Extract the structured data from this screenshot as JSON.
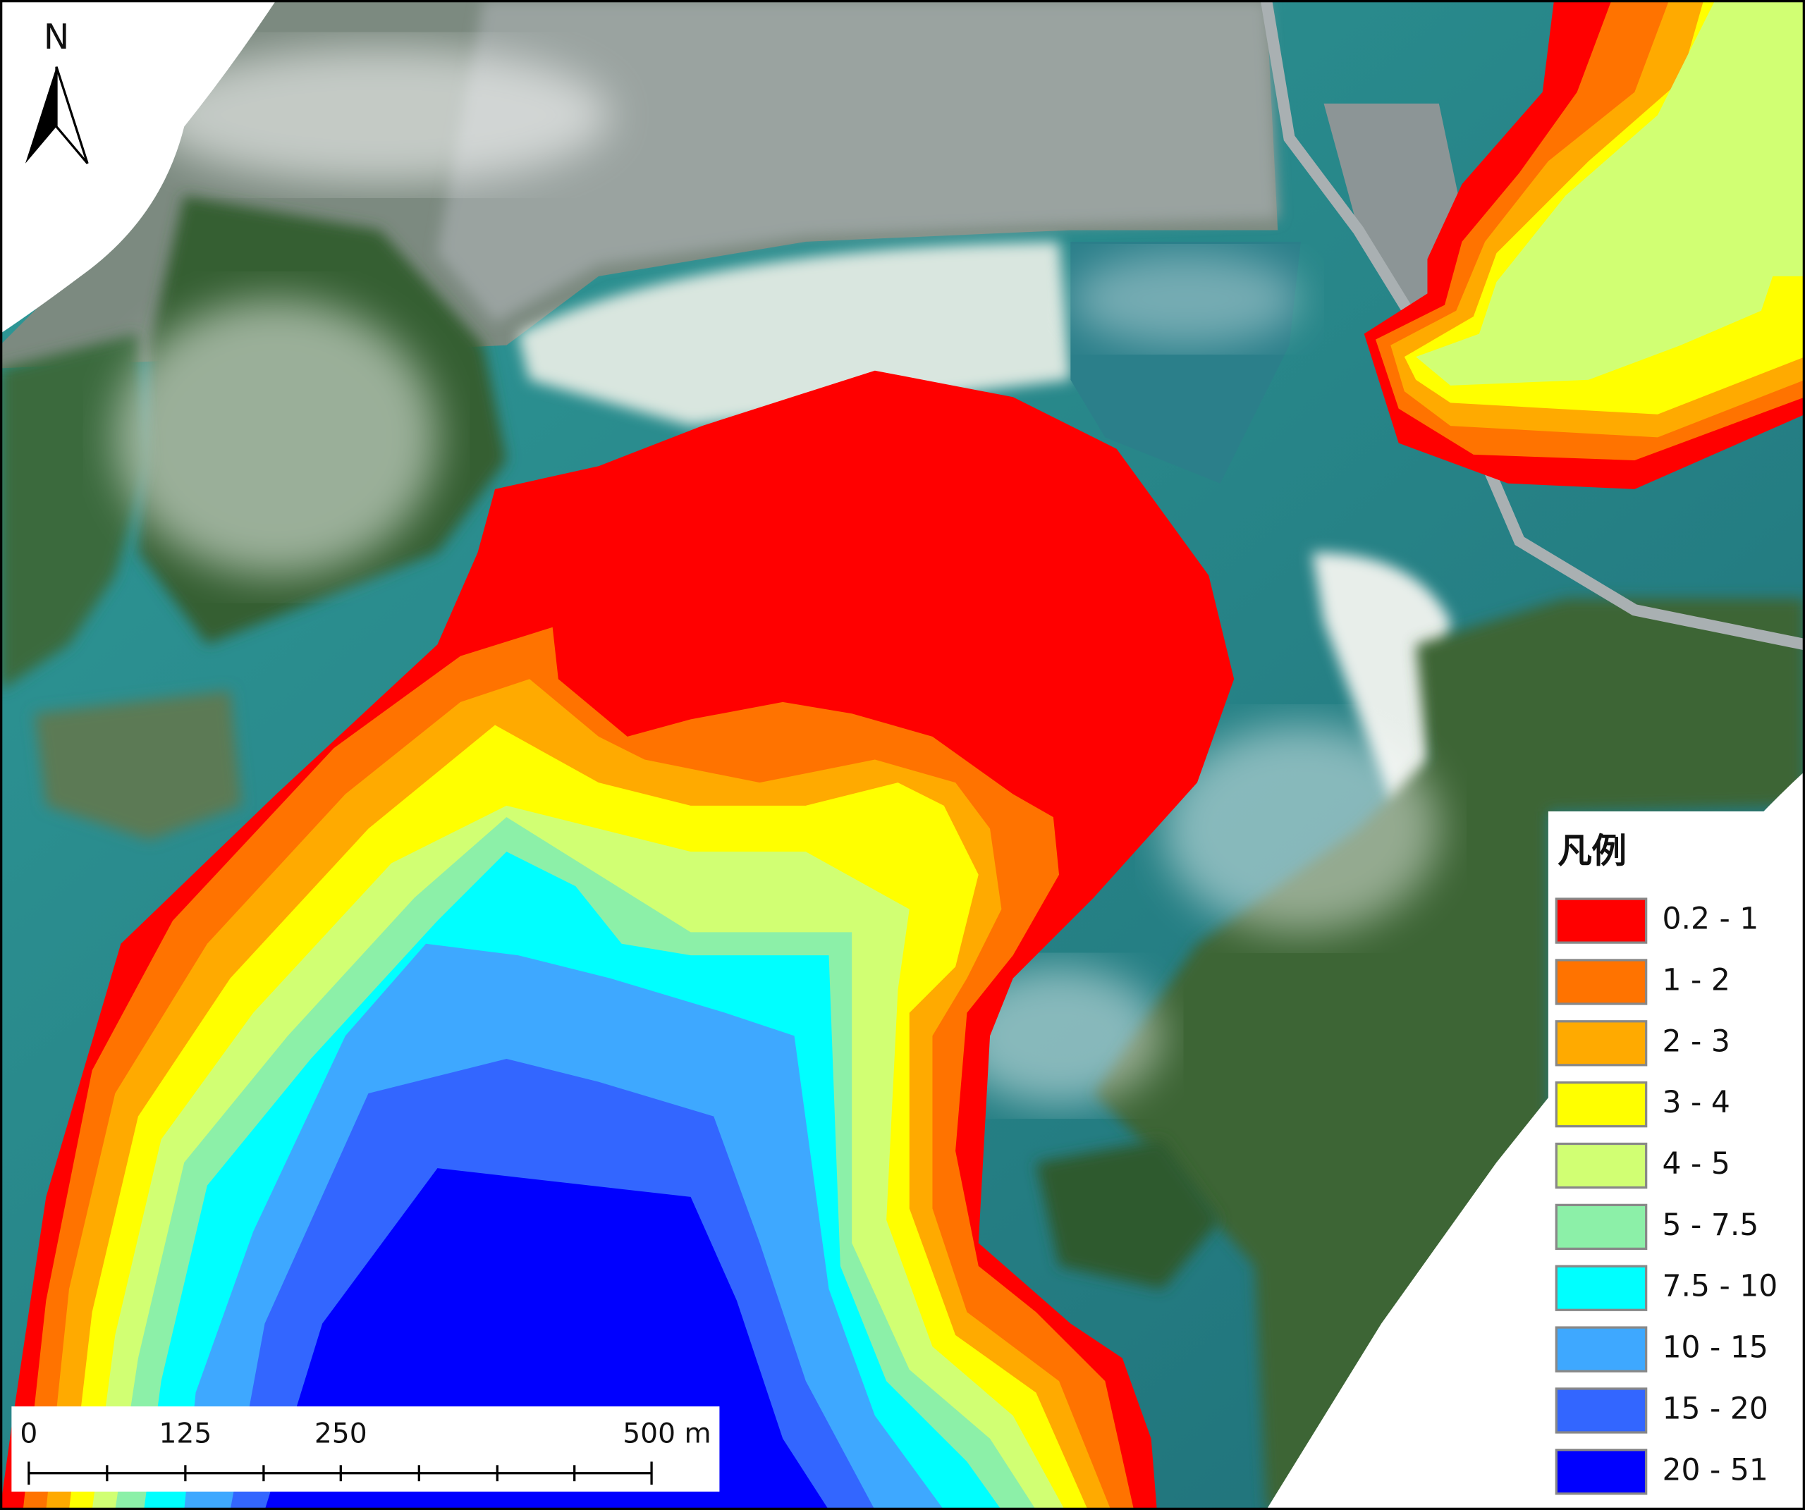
{
  "north_label": "N",
  "legend": {
    "title": "凡例",
    "items": [
      {
        "label": "0.2 - 1",
        "color": "#ff0000"
      },
      {
        "label": "1 - 2",
        "color": "#ff7300"
      },
      {
        "label": "2 - 3",
        "color": "#ffaa00"
      },
      {
        "label": "3 - 4",
        "color": "#ffff00"
      },
      {
        "label": "4 - 5",
        "color": "#d1ff73"
      },
      {
        "label": "5 - 7.5",
        "color": "#8cf0a8"
      },
      {
        "label": "7.5 - 10",
        "color": "#00ffff"
      },
      {
        "label": "10 - 15",
        "color": "#3ea8ff"
      },
      {
        "label": "15 - 20",
        "color": "#3366ff"
      },
      {
        "label": "20 - 51",
        "color": "#0000ff"
      }
    ]
  },
  "scale_bar": {
    "labels": [
      "0",
      "125",
      "250",
      "500 m"
    ]
  }
}
